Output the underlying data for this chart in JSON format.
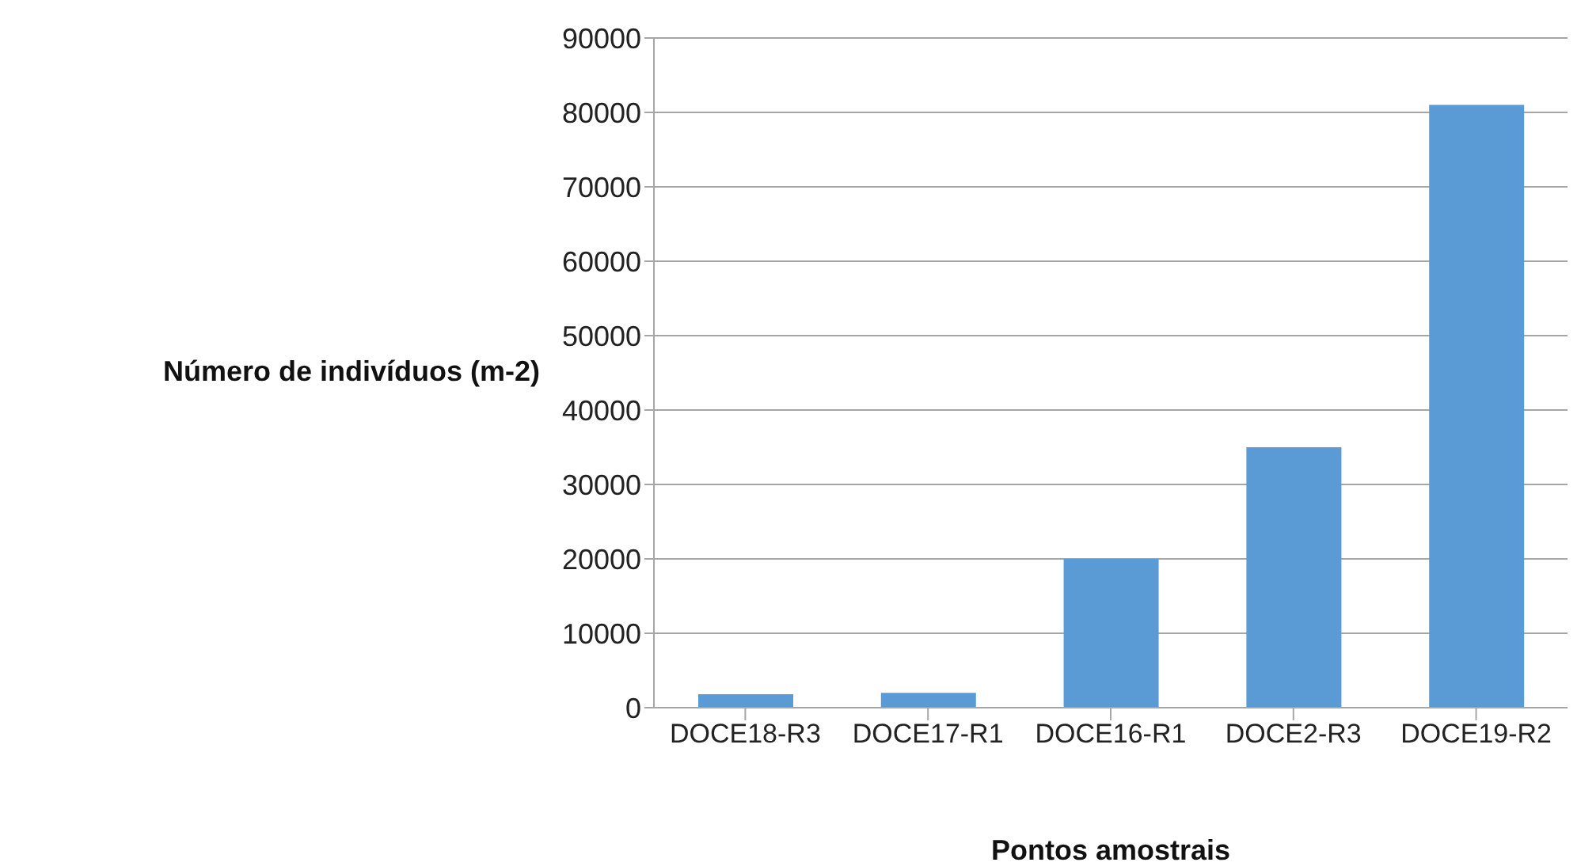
{
  "chart_data": {
    "type": "bar",
    "xlabel": "Pontos amostrais",
    "ylabel": "Número de indivíduos (m-2)",
    "categories": [
      "DOCE18-R3",
      "DOCE17-R1",
      "DOCE16-R1",
      "DOCE2-R3",
      "DOCE19-R2"
    ],
    "values": [
      1800,
      2000,
      20000,
      35000,
      81000
    ],
    "color": "#5b9bd5",
    "ylim": [
      0,
      90000
    ],
    "yticks": [
      0,
      10000,
      20000,
      30000,
      40000,
      50000,
      60000,
      70000,
      80000,
      90000
    ],
    "grid": "y",
    "legend": false
  }
}
